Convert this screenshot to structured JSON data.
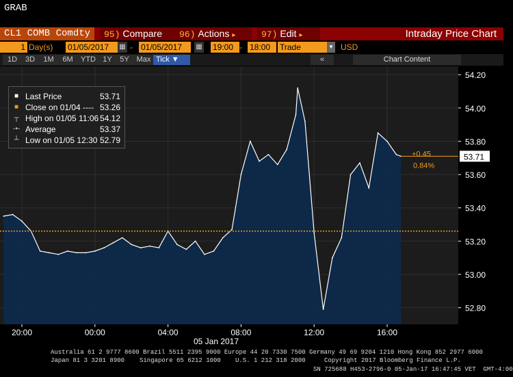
{
  "app": {
    "grab_label": "GRAB"
  },
  "function_bar": {
    "ticker": "CL1 COMB Comdty",
    "compare": {
      "num": "95)",
      "label": "Compare"
    },
    "actions": {
      "num": "96)",
      "label": "Actions",
      "caret": "▸"
    },
    "edit": {
      "num": "97)",
      "label": "Edit",
      "caret": "▸"
    },
    "title": "Intraday Price Chart"
  },
  "params": {
    "period_count": "1",
    "period_unit": "Day(s)",
    "start_date": "01/05/2017",
    "end_date": "01/05/2017",
    "start_time": "19:00",
    "end_time": "18:00",
    "data_type": "Trade",
    "currency": "USD"
  },
  "range_buttons": [
    "1D",
    "3D",
    "1M",
    "6M",
    "YTD",
    "1Y",
    "5Y",
    "Max"
  ],
  "tick_button": "Tick ▼",
  "chart_content_label": "Chart Content",
  "collapse_icon": "«",
  "legend": [
    {
      "icon": "white-square",
      "name": "Last Price",
      "value": "53.71",
      "color": "#ffffff"
    },
    {
      "icon": "orange-square",
      "name": "Close on 01/04  ----",
      "value": "53.26",
      "color": "#f39a1e"
    },
    {
      "icon": "high-marker",
      "name": "High on 01/05 11:06",
      "value": "54.12",
      "color": "#cccccc"
    },
    {
      "icon": "average-marker",
      "name": "Average",
      "value": "53.37",
      "color": "#cccccc"
    },
    {
      "icon": "low-marker",
      "name": "Low on 01/05 12:30",
      "value": "52.79",
      "color": "#cccccc"
    }
  ],
  "chart_data": {
    "type": "line",
    "series": [
      {
        "name": "Last Price",
        "x": [
          "19:00",
          "19:30",
          "20:00",
          "20:30",
          "21:00",
          "21:30",
          "22:00",
          "22:30",
          "23:00",
          "23:30",
          "00:00",
          "00:30",
          "01:00",
          "01:30",
          "02:00",
          "02:30",
          "03:00",
          "03:30",
          "04:00",
          "04:30",
          "05:00",
          "05:30",
          "06:00",
          "06:30",
          "07:00",
          "07:30",
          "08:00",
          "08:30",
          "09:00",
          "09:30",
          "10:00",
          "10:30",
          "11:00",
          "11:06",
          "11:30",
          "12:00",
          "12:30",
          "13:00",
          "13:30",
          "14:00",
          "14:30",
          "15:00",
          "15:30",
          "16:00",
          "16:30",
          "16:45"
        ],
        "values": [
          53.35,
          53.36,
          53.32,
          53.26,
          53.14,
          53.13,
          53.12,
          53.14,
          53.13,
          53.13,
          53.14,
          53.16,
          53.19,
          53.22,
          53.18,
          53.16,
          53.17,
          53.16,
          53.26,
          53.18,
          53.15,
          53.2,
          53.12,
          53.14,
          53.22,
          53.27,
          53.6,
          53.8,
          53.68,
          53.72,
          53.66,
          53.75,
          53.96,
          54.12,
          53.92,
          53.25,
          52.79,
          53.1,
          53.22,
          53.6,
          53.67,
          53.52,
          53.85,
          53.8,
          53.72,
          53.71
        ]
      }
    ],
    "close_prior": 53.26,
    "last_price": 53.71,
    "change": "+0.45",
    "change_pct": "0.84%",
    "ylim": [
      52.7,
      54.25
    ],
    "yticks": [
      "54.20",
      "54.00",
      "53.80",
      "53.60",
      "53.40",
      "53.20",
      "53.00",
      "52.80"
    ],
    "xticks": [
      "20:00",
      "00:00",
      "04:00",
      "08:00",
      "12:00",
      "16:00"
    ],
    "date_label": "05 Jan 2017",
    "colors": {
      "line": "#ffffff",
      "area": "#0e2a4a",
      "close": "#f39a1e",
      "axis_text": "#ffffff"
    }
  },
  "footer": {
    "line1": "Australia 61 2 9777 8600 Brazil 5511 2395 9000 Europe 44 20 7330 7500 Germany 49 69 9204 1210 Hong Kong 852 2977 6000",
    "line2a": "Japan 81 3 3201 8900",
    "line2b": "Singapore 65 6212 1000",
    "line2c": "U.S. 1 212 318 2000",
    "line2d": "Copyright 2017 Bloomberg Finance L.P.",
    "line3": "SN 725688 H453-2796-0 05-Jan-17 16:47:45 VET  GMT-4:00"
  }
}
